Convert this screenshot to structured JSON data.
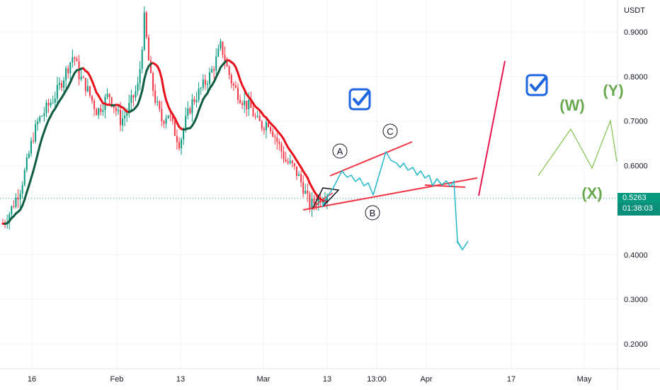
{
  "chart_data": {
    "type": "candlestick",
    "currency": "USDT",
    "y_ticks": [
      "0.9000",
      "0.8000",
      "0.7000",
      "0.6000",
      "0.4000",
      "0.3000",
      "0.2000"
    ],
    "y_tick_values": [
      0.9,
      0.8,
      0.7,
      0.6,
      0.4,
      0.3,
      0.2
    ],
    "x_ticks": [
      "16",
      "Feb",
      "13",
      "Mar",
      "13",
      "13:00",
      "Apr",
      "17",
      "May"
    ],
    "ylim": [
      0.16,
      0.96
    ],
    "last_price": "0.5263",
    "last_price_value": 0.5263,
    "countdown": "01:38:03",
    "wave_labels_circled": [
      "A",
      "B",
      "C"
    ],
    "wave_labels_projection": [
      "(W)",
      "(X)",
      "(Y)"
    ],
    "ohlc_approx": [
      0.47,
      0.49,
      0.52,
      0.55,
      0.6,
      0.66,
      0.7,
      0.72,
      0.74,
      0.76,
      0.79,
      0.82,
      0.85,
      0.8,
      0.78,
      0.75,
      0.72,
      0.74,
      0.76,
      0.73,
      0.7,
      0.72,
      0.75,
      0.78,
      0.93,
      0.8,
      0.74,
      0.7,
      0.72,
      0.68,
      0.65,
      0.7,
      0.74,
      0.76,
      0.78,
      0.8,
      0.83,
      0.87,
      0.82,
      0.78,
      0.76,
      0.74,
      0.73,
      0.7,
      0.69,
      0.7,
      0.67,
      0.64,
      0.61,
      0.6,
      0.58,
      0.55,
      0.51,
      0.52,
      0.53,
      0.54
    ],
    "grid": true,
    "legend": "none"
  },
  "colors": {
    "up": "#089981",
    "down": "#f23645",
    "ma_down": "#e8121d",
    "ma_up": "#0f5c3f",
    "channel": "#f23645",
    "path": "#22b8c8",
    "projection": "#7fc24a",
    "price_line": "#089981",
    "check": "#1e66e0"
  },
  "icons": [
    "checkbox-icon",
    "checkbox-icon"
  ]
}
